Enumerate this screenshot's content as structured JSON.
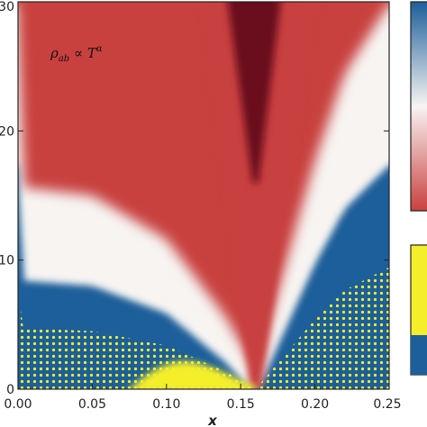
{
  "chart_data": {
    "type": "heatmap",
    "title": "",
    "xlabel": "x",
    "ylabel": "",
    "xlim": [
      0.0,
      0.25
    ],
    "ylim": [
      0,
      30
    ],
    "x_ticks": [
      "0.00",
      "0.05",
      "0.10",
      "0.15",
      "0.20",
      "0.25"
    ],
    "y_ticks": [
      "0",
      "10",
      "20",
      "30"
    ],
    "annotation": "ρab ∝ Tα",
    "critical_point_x": 0.16,
    "regions": [
      {
        "name": "red (α≈1)",
        "color": "#c8413f"
      },
      {
        "name": "dark red wedge",
        "color": "#6b0c1e"
      },
      {
        "name": "white crossover",
        "color": "#f7f4f2"
      },
      {
        "name": "blue (α≈2)",
        "color": "#1d5f9a"
      },
      {
        "name": "yellow dots",
        "color": "#f5ef2b"
      }
    ],
    "crossover_boundary_T": [
      {
        "x": 0.0,
        "T": 10.5
      },
      {
        "x": 0.05,
        "T": 10.0
      },
      {
        "x": 0.1,
        "T": 7.5
      },
      {
        "x": 0.14,
        "T": 3.0
      },
      {
        "x": 0.16,
        "T": 0.0
      },
      {
        "x": 0.18,
        "T": 6.0
      },
      {
        "x": 0.2,
        "T": 12.0
      },
      {
        "x": 0.22,
        "T": 17.0
      },
      {
        "x": 0.25,
        "T": 21.0
      }
    ],
    "colorbars": [
      {
        "position": "top-right",
        "colors": [
          "#1d5f9a",
          "#f7f4f2",
          "#c8413f"
        ]
      },
      {
        "position": "bottom-right",
        "colors": [
          "#f5ef2b",
          "#f5ef2b"
        ]
      }
    ]
  }
}
